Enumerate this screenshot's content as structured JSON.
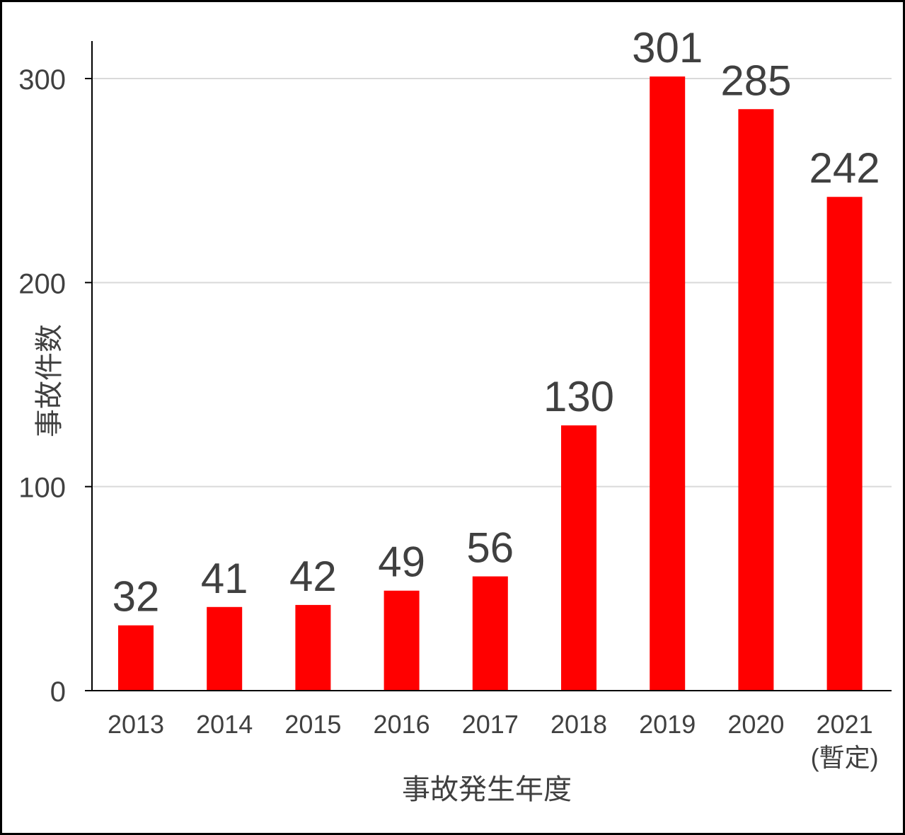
{
  "chart_data": {
    "type": "bar",
    "categories": [
      "2013",
      "2014",
      "2015",
      "2016",
      "2017",
      "2018",
      "2019",
      "2020",
      "2021"
    ],
    "category_sublabels": [
      "",
      "",
      "",
      "",
      "",
      "",
      "",
      "",
      "(暫定)"
    ],
    "values": [
      32,
      41,
      42,
      49,
      56,
      130,
      301,
      285,
      242
    ],
    "ylabel": "事故件数",
    "xlabel": "事故発生年度",
    "ylim": [
      0,
      300
    ],
    "yticks": [
      0,
      100,
      200,
      300
    ],
    "grid": true,
    "bar_color": "#ff0000",
    "gridline_color": "#d9d9d9"
  }
}
